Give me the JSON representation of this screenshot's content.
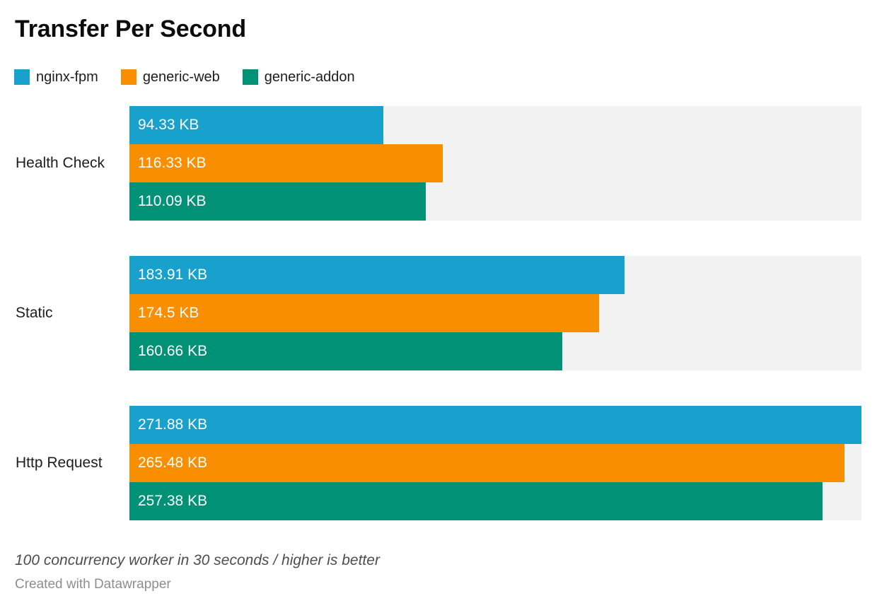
{
  "title": "Transfer Per Second",
  "footer": {
    "note": "100 concurrency worker in 30 seconds / higher is better",
    "credit": "Created with Datawrapper"
  },
  "chart_data": {
    "type": "bar",
    "orientation": "horizontal",
    "title": "Transfer Per Second",
    "unit": "KB",
    "xmax": 271.88,
    "xlim": [
      0,
      271.88
    ],
    "grid": false,
    "legend_position": "top-left",
    "track_color": "#f2f2f2",
    "bar_label_color": "#ffffff",
    "categories": [
      "Health Check",
      "Static",
      "Http Request"
    ],
    "series": [
      {
        "name": "nginx-fpm",
        "color": "#18a1cd",
        "values": [
          94.33,
          183.91,
          271.88
        ],
        "labels": [
          "94.33 KB",
          "183.91 KB",
          "271.88 KB"
        ]
      },
      {
        "name": "generic-web",
        "color": "#f98e00",
        "values": [
          116.33,
          174.5,
          265.48
        ],
        "labels": [
          "116.33 KB",
          "174.5 KB",
          "265.48 KB"
        ]
      },
      {
        "name": "generic-addon",
        "color": "#009176",
        "values": [
          110.09,
          160.66,
          257.38
        ],
        "labels": [
          "110.09 KB",
          "160.66 KB",
          "257.38 KB"
        ]
      }
    ]
  }
}
